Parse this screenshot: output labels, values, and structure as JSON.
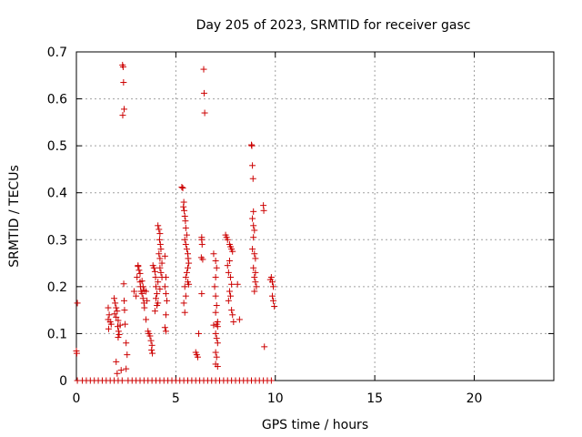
{
  "chart_data": {
    "type": "scatter",
    "title": "Day 205 of 2023, SRMTID for receiver gasc",
    "xlabel": "GPS time / hours",
    "ylabel": "SRMTID / TECUs",
    "xlim": [
      0,
      24
    ],
    "ylim": [
      0,
      0.7
    ],
    "xticks": [
      0,
      5,
      10,
      15,
      20
    ],
    "xtick_labels": [
      "0",
      "5",
      "10",
      "15",
      "20"
    ],
    "yticks": [
      0,
      0.1,
      0.2,
      0.3,
      0.4,
      0.5,
      0.6,
      0.7
    ],
    "ytick_labels": [
      "0",
      "0.1",
      "0.2",
      "0.3",
      "0.4",
      "0.5",
      "0.6",
      "0.7"
    ],
    "grid": true,
    "marker": "+",
    "color": "#cc0000",
    "series": [
      {
        "name": "SRMTID",
        "points": [
          [
            0.0,
            0.063
          ],
          [
            0.02,
            0.058
          ],
          [
            0.05,
            0.165
          ],
          [
            0.05,
            0
          ],
          [
            0.3,
            0
          ],
          [
            0.5,
            0
          ],
          [
            0.7,
            0
          ],
          [
            0.9,
            0
          ],
          [
            1.1,
            0
          ],
          [
            1.3,
            0
          ],
          [
            1.5,
            0
          ],
          [
            1.7,
            0
          ],
          [
            1.9,
            0
          ],
          [
            2.1,
            0
          ],
          [
            2.3,
            0
          ],
          [
            2.6,
            0
          ],
          [
            2.8,
            0
          ],
          [
            3.0,
            0
          ],
          [
            3.2,
            0
          ],
          [
            3.4,
            0
          ],
          [
            3.6,
            0
          ],
          [
            3.8,
            0
          ],
          [
            4.0,
            0
          ],
          [
            4.2,
            0
          ],
          [
            4.4,
            0
          ],
          [
            4.6,
            0
          ],
          [
            4.8,
            0
          ],
          [
            5.0,
            0
          ],
          [
            5.2,
            0
          ],
          [
            5.4,
            0
          ],
          [
            5.6,
            0
          ],
          [
            5.8,
            0
          ],
          [
            6.0,
            0
          ],
          [
            6.2,
            0
          ],
          [
            6.4,
            0
          ],
          [
            6.6,
            0
          ],
          [
            6.8,
            0
          ],
          [
            7.0,
            0
          ],
          [
            7.2,
            0
          ],
          [
            7.4,
            0
          ],
          [
            7.6,
            0
          ],
          [
            7.8,
            0
          ],
          [
            8.0,
            0
          ],
          [
            8.2,
            0
          ],
          [
            8.4,
            0
          ],
          [
            8.6,
            0
          ],
          [
            8.8,
            0
          ],
          [
            9.0,
            0
          ],
          [
            9.2,
            0
          ],
          [
            9.4,
            0
          ],
          [
            9.6,
            0
          ],
          [
            9.8,
            0
          ],
          [
            1.6,
            0.155
          ],
          [
            1.65,
            0.14
          ],
          [
            1.6,
            0.13
          ],
          [
            1.7,
            0.125
          ],
          [
            1.75,
            0.12
          ],
          [
            1.62,
            0.11
          ],
          [
            1.9,
            0.175
          ],
          [
            1.95,
            0.165
          ],
          [
            2.0,
            0.155
          ],
          [
            2.05,
            0.148
          ],
          [
            1.92,
            0.142
          ],
          [
            2.0,
            0.135
          ],
          [
            2.1,
            0.128
          ],
          [
            2.08,
            0.115
          ],
          [
            2.12,
            0.105
          ],
          [
            2.15,
            0.098
          ],
          [
            2.2,
            0.118
          ],
          [
            2.1,
            0.092
          ],
          [
            2.0,
            0.04
          ],
          [
            2.05,
            0.015
          ],
          [
            2.25,
            0.022
          ],
          [
            2.32,
            0.672
          ],
          [
            2.35,
            0.668
          ],
          [
            2.37,
            0.635
          ],
          [
            2.4,
            0.578
          ],
          [
            2.33,
            0.565
          ],
          [
            2.38,
            0.206
          ],
          [
            2.4,
            0.17
          ],
          [
            2.42,
            0.15
          ],
          [
            2.45,
            0.12
          ],
          [
            2.5,
            0.08
          ],
          [
            2.55,
            0.055
          ],
          [
            2.5,
            0.025
          ],
          [
            2.9,
            0.19
          ],
          [
            3.0,
            0.18
          ],
          [
            3.05,
            0.22
          ],
          [
            3.1,
            0.243
          ],
          [
            3.15,
            0.235
          ],
          [
            3.2,
            0.21
          ],
          [
            3.22,
            0.2
          ],
          [
            3.25,
            0.19
          ],
          [
            3.3,
            0.185
          ],
          [
            3.35,
            0.175
          ],
          [
            3.4,
            0.165
          ],
          [
            3.42,
            0.155
          ],
          [
            3.1,
            0.245
          ],
          [
            3.2,
            0.228
          ],
          [
            3.3,
            0.212
          ],
          [
            3.35,
            0.2
          ],
          [
            3.4,
            0.192
          ],
          [
            3.5,
            0.19
          ],
          [
            3.55,
            0.17
          ],
          [
            3.5,
            0.13
          ],
          [
            3.6,
            0.105
          ],
          [
            3.65,
            0.1
          ],
          [
            3.7,
            0.095
          ],
          [
            3.75,
            0.085
          ],
          [
            3.8,
            0.075
          ],
          [
            3.78,
            0.065
          ],
          [
            3.82,
            0.058
          ],
          [
            3.85,
            0.245
          ],
          [
            3.9,
            0.24
          ],
          [
            3.95,
            0.232
          ],
          [
            3.98,
            0.22
          ],
          [
            4.0,
            0.2
          ],
          [
            4.05,
            0.185
          ],
          [
            4.0,
            0.175
          ],
          [
            4.1,
            0.165
          ],
          [
            4.05,
            0.16
          ],
          [
            3.95,
            0.148
          ],
          [
            4.1,
            0.33
          ],
          [
            4.15,
            0.322
          ],
          [
            4.2,
            0.313
          ],
          [
            4.18,
            0.3
          ],
          [
            4.22,
            0.29
          ],
          [
            4.25,
            0.28
          ],
          [
            4.15,
            0.27
          ],
          [
            4.2,
            0.26
          ],
          [
            4.3,
            0.25
          ],
          [
            4.2,
            0.24
          ],
          [
            4.25,
            0.23
          ],
          [
            4.3,
            0.22
          ],
          [
            4.1,
            0.21
          ],
          [
            4.2,
            0.195
          ],
          [
            4.45,
            0.265
          ],
          [
            4.5,
            0.22
          ],
          [
            4.45,
            0.2
          ],
          [
            4.5,
            0.185
          ],
          [
            4.55,
            0.17
          ],
          [
            4.5,
            0.14
          ],
          [
            4.45,
            0.113
          ],
          [
            4.5,
            0.105
          ],
          [
            5.3,
            0.412
          ],
          [
            5.35,
            0.41
          ],
          [
            5.4,
            0.38
          ],
          [
            5.38,
            0.37
          ],
          [
            5.42,
            0.362
          ],
          [
            5.45,
            0.35
          ],
          [
            5.48,
            0.34
          ],
          [
            5.5,
            0.325
          ],
          [
            5.55,
            0.31
          ],
          [
            5.45,
            0.3
          ],
          [
            5.5,
            0.29
          ],
          [
            5.55,
            0.28
          ],
          [
            5.6,
            0.27
          ],
          [
            5.62,
            0.26
          ],
          [
            5.65,
            0.25
          ],
          [
            5.6,
            0.24
          ],
          [
            5.55,
            0.23
          ],
          [
            5.5,
            0.22
          ],
          [
            5.45,
            0.2
          ],
          [
            5.5,
            0.18
          ],
          [
            5.4,
            0.165
          ],
          [
            5.45,
            0.145
          ],
          [
            5.6,
            0.21
          ],
          [
            5.65,
            0.205
          ],
          [
            6.0,
            0.06
          ],
          [
            6.05,
            0.055
          ],
          [
            6.1,
            0.05
          ],
          [
            6.15,
            0.1
          ],
          [
            6.3,
            0.305
          ],
          [
            6.3,
            0.3
          ],
          [
            6.32,
            0.29
          ],
          [
            6.28,
            0.262
          ],
          [
            6.35,
            0.258
          ],
          [
            6.4,
            0.663
          ],
          [
            6.42,
            0.612
          ],
          [
            6.45,
            0.57
          ],
          [
            6.3,
            0.185
          ],
          [
            6.9,
            0.27
          ],
          [
            7.0,
            0.255
          ],
          [
            7.05,
            0.24
          ],
          [
            7.0,
            0.22
          ],
          [
            6.95,
            0.2
          ],
          [
            7.0,
            0.18
          ],
          [
            7.05,
            0.16
          ],
          [
            7.0,
            0.145
          ],
          [
            7.05,
            0.12
          ],
          [
            7.1,
            0.115
          ],
          [
            7.0,
            0.1
          ],
          [
            7.05,
            0.09
          ],
          [
            7.1,
            0.08
          ],
          [
            7.0,
            0.06
          ],
          [
            7.05,
            0.05
          ],
          [
            7.0,
            0.035
          ],
          [
            7.1,
            0.03
          ],
          [
            7.1,
            0.125
          ],
          [
            6.9,
            0.118
          ],
          [
            7.5,
            0.31
          ],
          [
            7.55,
            0.305
          ],
          [
            7.6,
            0.3
          ],
          [
            7.7,
            0.29
          ],
          [
            7.75,
            0.285
          ],
          [
            7.8,
            0.28
          ],
          [
            7.85,
            0.275
          ],
          [
            7.7,
            0.255
          ],
          [
            7.6,
            0.245
          ],
          [
            7.65,
            0.23
          ],
          [
            7.75,
            0.22
          ],
          [
            7.8,
            0.205
          ],
          [
            7.7,
            0.19
          ],
          [
            7.75,
            0.18
          ],
          [
            7.65,
            0.17
          ],
          [
            7.8,
            0.15
          ],
          [
            7.85,
            0.14
          ],
          [
            7.9,
            0.125
          ],
          [
            8.1,
            0.205
          ],
          [
            8.2,
            0.13
          ],
          [
            8.8,
            0.502
          ],
          [
            8.82,
            0.5
          ],
          [
            8.85,
            0.458
          ],
          [
            8.88,
            0.43
          ],
          [
            8.9,
            0.36
          ],
          [
            8.85,
            0.345
          ],
          [
            8.9,
            0.33
          ],
          [
            8.95,
            0.32
          ],
          [
            8.9,
            0.305
          ],
          [
            8.85,
            0.28
          ],
          [
            8.95,
            0.27
          ],
          [
            9.0,
            0.26
          ],
          [
            8.9,
            0.24
          ],
          [
            9.0,
            0.23
          ],
          [
            8.95,
            0.22
          ],
          [
            9.0,
            0.21
          ],
          [
            9.05,
            0.2
          ],
          [
            8.95,
            0.19
          ],
          [
            9.4,
            0.373
          ],
          [
            9.42,
            0.362
          ],
          [
            9.45,
            0.072
          ],
          [
            9.8,
            0.22
          ],
          [
            9.85,
            0.21
          ],
          [
            9.9,
            0.2
          ],
          [
            9.85,
            0.18
          ],
          [
            9.9,
            0.17
          ],
          [
            9.95,
            0.158
          ],
          [
            9.75,
            0.215
          ]
        ]
      }
    ]
  }
}
